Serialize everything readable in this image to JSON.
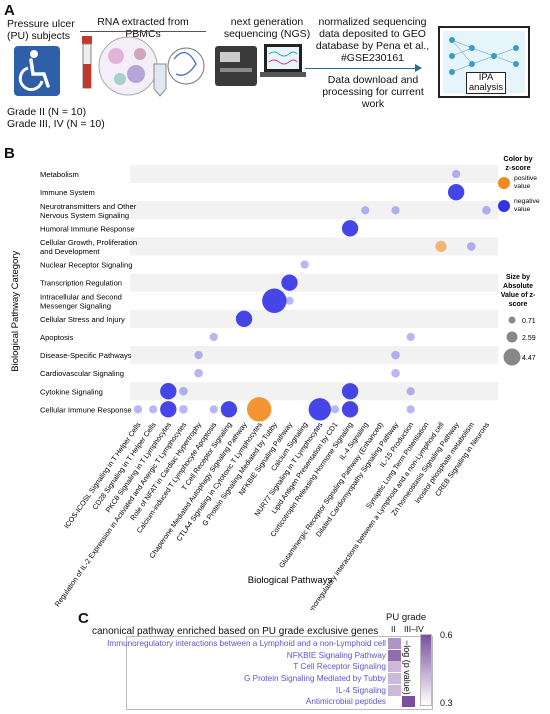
{
  "panels": {
    "a": "A",
    "b": "B",
    "c": "C"
  },
  "panel_a": {
    "subjects": "Pressure ulcer (PU) subjects",
    "grade_ii": "Grade II (N = 10)",
    "grade_iii_iv": "Grade III, IV (N = 10)",
    "rna": "RNA extracted from PBMCs",
    "ngs": "next generation sequencing (NGS)",
    "deposit": "normalized sequencing data deposited to GEO database by Pena et al., #GSE230161",
    "download": "Data download and processing for current work",
    "ipa": "IPA analysis",
    "icons": [
      "wheelchair-icon",
      "blood-tube-icon",
      "cells-icon",
      "sequencer-icon",
      "laptop-icon",
      "neural-network-icon"
    ]
  },
  "chart_data": [
    {
      "type": "scatter",
      "xlabel": "Biological Pathways",
      "ylabel": "Biological Pathway Category",
      "categories_y": [
        "Metabolism",
        "Immune System",
        "Neurotransmitters and Other Nervous System Signaling",
        "Humoral Immune Response",
        "Cellular Growth, Proliferation and Development",
        "Nuclear Receptor Signaling",
        "Transcription Regulation",
        "Intracellular and Second Messenger Signaling",
        "Cellular Stress and Injury",
        "Apoptosis",
        "Disease-Specific Pathways",
        "Cardiovascular Signaling",
        "Cytokine Signaling",
        "Cellular Immune Response"
      ],
      "categories_x": [
        "ICOS-ICOSL Signaling in T Helper Cells",
        "CD28 Signaling in T Helper Cells",
        "PKCθ Signaling in T Lymphocytes",
        "Regulation of IL-2 Expression in Activated and Anergic T Lymphocytes",
        "Role of NFAT in Cardiac Hypertrophy",
        "Calcium-induced T Lymphocyte Apoptosis",
        "T Cell Receptor Signaling",
        "Chaperone Mediated Autophagy Signaling Pathway",
        "CTLA4 Signaling in Cytotoxic T Lymphocytes",
        "G Protein Signaling Mediated by Tubby",
        "NFKBIE Signaling Pathway",
        "Calcium Signaling",
        "NUR77 Signaling in T Lymphocytes",
        "Lipid Antigen Presentation by CD1",
        "Corticotropin Releasing Hormone Signaling",
        "IL-4 Signaling",
        "Glutaminergic Receptor Signaling Pathway (Enhanced)",
        "Dilated Cardiomyopathy Signaling Pathway",
        "IL-15 Production",
        "Synaptic Long Term Potentiation",
        "Immunoregulatory interactions between a Lymphoid and a non-Lymphoid cell",
        "Zn homeostasis Signaling Pathway",
        "Inositol phosphate metabolism",
        "CREB Signaling in Neurons"
      ],
      "points": [
        {
          "x": "ICOS-ICOSL Signaling in T Helper Cells",
          "y": "Cellular Immune Response",
          "size": 0.71,
          "z": "negative"
        },
        {
          "x": "CD28 Signaling in T Helper Cells",
          "y": "Cellular Immune Response",
          "size": 0.71,
          "z": "negative"
        },
        {
          "x": "PKCθ Signaling in T Lymphocytes",
          "y": "Cellular Immune Response",
          "size": 2.6,
          "z": "negative"
        },
        {
          "x": "PKCθ Signaling in T Lymphocytes",
          "y": "Cytokine Signaling",
          "size": 2.6,
          "z": "negative"
        },
        {
          "x": "Regulation of IL-2 Expression in Activated and Anergic T Lymphocytes",
          "y": "Cellular Immune Response",
          "size": 0.8,
          "z": "negative"
        },
        {
          "x": "Regulation of IL-2 Expression in Activated and Anergic T Lymphocytes",
          "y": "Cytokine Signaling",
          "size": 0.8,
          "z": "negative"
        },
        {
          "x": "Role of NFAT in Cardiac Hypertrophy",
          "y": "Cardiovascular Signaling",
          "size": 0.8,
          "z": "negative"
        },
        {
          "x": "Role of NFAT in Cardiac Hypertrophy",
          "y": "Disease-Specific Pathways",
          "size": 0.71,
          "z": "negative"
        },
        {
          "x": "Calcium-induced T Lymphocyte Apoptosis",
          "y": "Cellular Immune Response",
          "size": 0.71,
          "z": "negative"
        },
        {
          "x": "Calcium-induced T Lymphocyte Apoptosis",
          "y": "Apoptosis",
          "size": 0.71,
          "z": "negative"
        },
        {
          "x": "T Cell Receptor Signaling",
          "y": "Cellular Immune Response",
          "size": 2.59,
          "z": "negative"
        },
        {
          "x": "Chaperone Mediated Autophagy Signaling Pathway",
          "y": "Cellular Stress and Injury",
          "size": 2.59,
          "z": "negative"
        },
        {
          "x": "CTLA4 Signaling in Cytotoxic T Lymphocytes",
          "y": "Cellular Immune Response",
          "size": 4.47,
          "z": "positive"
        },
        {
          "x": "G Protein Signaling Mediated by Tubby",
          "y": "Intracellular and Second Messenger Signaling",
          "size": 4.47,
          "z": "negative"
        },
        {
          "x": "NFKBIE Signaling Pathway",
          "y": "Transcription Regulation",
          "size": 2.59,
          "z": "negative"
        },
        {
          "x": "NFKBIE Signaling Pathway",
          "y": "Intracellular and Second Messenger Signaling",
          "size": 0.71,
          "z": "negative"
        },
        {
          "x": "Calcium Signaling",
          "y": "Nuclear Receptor Signaling",
          "size": 0.71,
          "z": "negative"
        },
        {
          "x": "NUR77 Signaling in T Lymphocytes",
          "y": "Cellular Immune Response",
          "size": 4.0,
          "z": "negative"
        },
        {
          "x": "Lipid Antigen Presentation by CD1",
          "y": "Cellular Immune Response",
          "size": 0.71,
          "z": "negative"
        },
        {
          "x": "Corticotropin Releasing Hormone Signaling",
          "y": "Humoral Immune Response",
          "size": 2.59,
          "z": "negative"
        },
        {
          "x": "Corticotropin Releasing Hormone Signaling",
          "y": "Cytokine Signaling",
          "size": 2.59,
          "z": "negative"
        },
        {
          "x": "Corticotropin Releasing Hormone Signaling",
          "y": "Cellular Immune Response",
          "size": 2.59,
          "z": "negative"
        },
        {
          "x": "IL-4 Signaling",
          "y": "Neurotransmitters and Other Nervous System Signaling",
          "size": 0.71,
          "z": "negative"
        },
        {
          "x": "Dilated Cardiomyopathy Signaling Pathway",
          "y": "Neurotransmitters and Other Nervous System Signaling",
          "size": 0.71,
          "z": "negative"
        },
        {
          "x": "Dilated Cardiomyopathy Signaling Pathway",
          "y": "Disease-Specific Pathways",
          "size": 0.8,
          "z": "negative"
        },
        {
          "x": "Dilated Cardiomyopathy Signaling Pathway",
          "y": "Cardiovascular Signaling",
          "size": 0.8,
          "z": "negative"
        },
        {
          "x": "IL-15 Production",
          "y": "Apoptosis",
          "size": 0.71,
          "z": "negative"
        },
        {
          "x": "IL-15 Production",
          "y": "Cytokine Signaling",
          "size": 0.71,
          "z": "negative"
        },
        {
          "x": "IL-15 Production",
          "y": "Cellular Immune Response",
          "size": 0.71,
          "z": "negative"
        },
        {
          "x": "Immunoregulatory interactions between a Lymphoid and a non-Lymphoid cell",
          "y": "Cellular Growth, Proliferation and Development",
          "size": 1.4,
          "z": "positive"
        },
        {
          "x": "Zn homeostasis Signaling Pathway",
          "y": "Metabolism",
          "size": 0.71,
          "z": "negative"
        },
        {
          "x": "Zn homeostasis Signaling Pathway",
          "y": "Immune System",
          "size": 2.6,
          "z": "negative"
        },
        {
          "x": "Inositol phosphate metabolism",
          "y": "Cellular Growth, Proliferation and Development",
          "size": 0.8,
          "z": "negative"
        },
        {
          "x": "CREB Signaling in Neurons",
          "y": "Neurotransmitters and Other Nervous System Signaling",
          "size": 0.8,
          "z": "negative"
        }
      ],
      "legend_color": {
        "title": "Color by z-score",
        "positive": "positive value",
        "negative": "negative value",
        "positive_color": "#f28a1c",
        "negative_color": "#3232e6"
      },
      "legend_size": {
        "title": "Size by Absolute Value of z-score",
        "values": [
          "0.71",
          "2.59",
          "4.47"
        ]
      }
    },
    {
      "type": "heatmap",
      "title": "canonical pathway enriched based on PU grade exclusive genes",
      "header": "PU grade",
      "columns": [
        "II",
        "III–IV"
      ],
      "rows": [
        "Immunoregulatory interactions between a Lymphoid and a non-Lymphoid cell",
        "NFKBIE Signaling Pathway",
        "T Cell Receptor Signaling",
        "G Protein Signaling Mediated by Tubby",
        "IL-4 Signaling",
        "Antimicrobial peptides"
      ],
      "values": [
        [
          0.48,
          null
        ],
        [
          0.55,
          null
        ],
        [
          0.42,
          null
        ],
        [
          0.42,
          null
        ],
        [
          0.42,
          null
        ],
        [
          null,
          0.6
        ]
      ],
      "colorbar": {
        "label": "−log (p value)",
        "min": "0.3",
        "max": "0.6"
      }
    }
  ]
}
